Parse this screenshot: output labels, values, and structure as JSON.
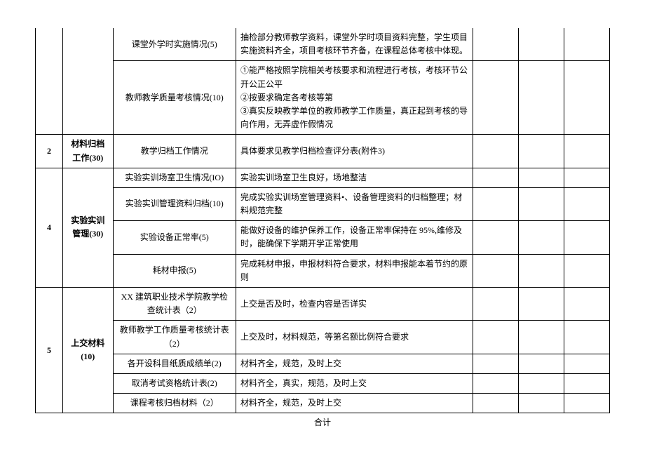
{
  "rows": {
    "r1": {
      "item": "课堂外学时实施情况(5)",
      "desc": "抽检部分教师教学资料，课堂外学时项目资料完整，学生项目实施资料齐全，项目考核环节齐备，在课程总体考核中体现。"
    },
    "r2": {
      "item": "教师教学质量考核情况(10)",
      "desc": "①能严格按照学院相关考核要求和流程进行考核，考核环节公开公正公平\n②按要求确定各考核等第\n③真实反映教学单位的教师教学工作质量，真正起到考核的导向作用，无弄虚作假情况"
    },
    "r3": {
      "num": "2",
      "cat": "材料归档工作(30)",
      "item": "教学归档工作情况",
      "desc": "具体要求见教学归档检查评分表(附件3)"
    },
    "r4": {
      "num": "4",
      "cat": "实验实训管理(30)",
      "item1": "实验实训场室卫生情况(IO)",
      "desc1": "实验实训场室卫生良好，场地整洁",
      "item2": "实验实训管理资料归档(10)",
      "desc2": "完成实验实训场室管理资料•、设备管理资料的归档整理；材料规范完整",
      "item3": "实验设备正常率(5)",
      "desc3": "能做好设备的维护保养工作，设备正常率保持在 95%,维修及时，能确保下学期开学正常使用",
      "item4": "耗材申报(5)",
      "desc4": "完成耗材申报，申报材料符合要求，材料申报能本着节约的原则"
    },
    "r5": {
      "num": "5",
      "cat": "上交材料(10)",
      "item1": "XX 建筑职业技术学院教学检查统计表（2）",
      "desc1": "上交是否及时，检查内容是否详实",
      "item2": "教师教学工作质量考核统计表（2）",
      "desc2": "上交及时，材料规范，等第名额比例符合要求",
      "item3": "各开设科目纸质成绩单(2)",
      "desc3": "材料齐全，规范，及时上交",
      "item4": "取消考试资格统计表(2)",
      "desc4": "材料齐全，真实，规范，及时上交",
      "item5": "课程考核归档材料（2）",
      "desc5": "材料齐全，规范，及时上交"
    },
    "footer": "合计"
  }
}
